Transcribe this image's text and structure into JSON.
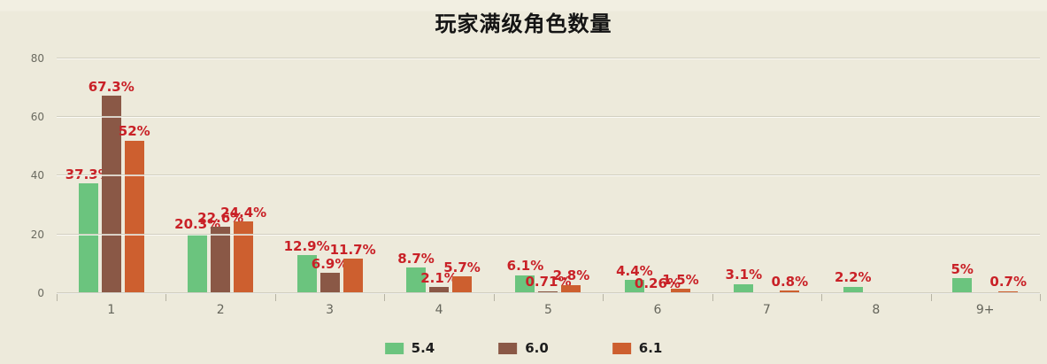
{
  "chart_data": {
    "type": "bar",
    "title": "玩家满级角色数量",
    "categories": [
      "1",
      "2",
      "3",
      "4",
      "5",
      "6",
      "7",
      "8",
      "9+"
    ],
    "series": [
      {
        "name": "5.4",
        "color": "#6bc47e",
        "values": [
          37.3,
          20.3,
          12.9,
          8.7,
          6.1,
          4.4,
          3.1,
          2.2,
          5
        ],
        "labels": [
          "37.3%",
          "20.3%",
          "12.9%",
          "8.7%",
          "6.1%",
          "4.4%",
          "3.1%",
          "2.2%",
          "5%"
        ]
      },
      {
        "name": "6.0",
        "color": "#8a5846",
        "values": [
          67.3,
          22.6,
          6.9,
          2.1,
          0.71,
          0.26,
          null,
          null,
          null
        ],
        "labels": [
          "67.3%",
          "22.6%",
          "6.9%",
          "2.1%",
          "0.71%",
          "0.26%",
          null,
          null,
          null
        ]
      },
      {
        "name": "6.1",
        "color": "#cd5f2f",
        "values": [
          52,
          24.4,
          11.7,
          5.7,
          2.8,
          1.5,
          0.8,
          null,
          0.7
        ],
        "labels": [
          "52%",
          "24.4%",
          "11.7%",
          "5.7%",
          "2.8%",
          "1.5%",
          "0.8%",
          null,
          "0.7%"
        ]
      }
    ],
    "y_ticks": [
      0,
      20,
      40,
      60,
      80
    ],
    "ylim": [
      0,
      84.8
    ],
    "xlabel": "",
    "ylabel": "",
    "grid": true,
    "legend_position": "bottom",
    "value_label_color": "#c92127",
    "background_color": "#edeadb"
  }
}
